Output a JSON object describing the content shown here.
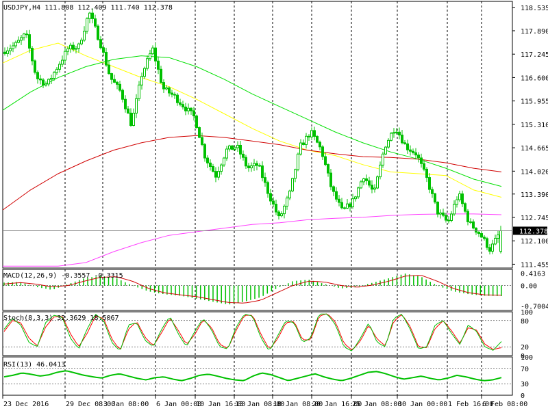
{
  "colors": {
    "candle": "#00c000",
    "ma_yellow": "#ffff00",
    "ma_green": "#00e000",
    "ma_red": "#d00000",
    "ma_magenta": "#ff40ff",
    "macd_hist": "#00c000",
    "macd_signal": "#d00000",
    "stoch_main": "#00c000",
    "stoch_signal": "#ff0000",
    "rsi": "#00c000",
    "grid": "#000000",
    "current_price_line": "#808080"
  },
  "labels": {
    "main": "USDJPY,H4  111.808 112.409 111.740 112.378",
    "macd": "MACD(12,26,9) -0.3557 -0.3315",
    "stoch": "Stoch(8,3,3) 32.3629 18.5067",
    "rsi": "RSI(13) 46.0413"
  },
  "chart_data": [
    {
      "type": "candlestick",
      "symbol": "USDJPY",
      "timeframe": "H4",
      "ohlc_current": {
        "open": 111.808,
        "high": 112.409,
        "low": 111.74,
        "close": 112.378
      },
      "current_price": "112.378",
      "ylim": [
        111.35,
        118.7
      ],
      "y_ticks": [
        "118.535",
        "117.890",
        "117.245",
        "116.600",
        "115.955",
        "115.310",
        "114.665",
        "114.020",
        "113.390",
        "112.745",
        "112.100",
        "111.455"
      ],
      "x_ticks": [
        "23 Dec 2016",
        "29 Dec 08:00",
        "3 Jan 08:00",
        "6 Jan 00:00",
        "10 Jan 16:00",
        "13 Jan 08:00",
        "18 Jan 08:00",
        "20 Jan 16:00",
        "25 Jan 08:00",
        "30 Jan 00:00",
        "1 Feb 16:00",
        "6 Feb 08:00"
      ],
      "grid": true,
      "close_path": [
        117.35,
        117.5,
        117.8,
        116.6,
        116.4,
        116.9,
        117.4,
        117.45,
        118.4,
        117.6,
        116.6,
        116.2,
        115.3,
        116.7,
        117.4,
        116.3,
        116.1,
        115.8,
        115.5,
        114.4,
        113.9,
        114.6,
        114.7,
        114.1,
        114.2,
        113.4,
        112.7,
        113.4,
        114.7,
        115.1,
        114.6,
        113.5,
        112.9,
        113.2,
        113.9,
        113.4,
        114.7,
        115.25,
        114.7,
        114.5,
        113.8,
        112.9,
        112.6,
        113.4,
        112.6,
        112.3,
        111.85,
        112.378
      ],
      "series": [
        {
          "name": "",
          "points": [
            117.0,
            117.35,
            117.55,
            117.2,
            116.9,
            116.6,
            116.35,
            116.0,
            115.6,
            115.2,
            114.85,
            114.6,
            114.45,
            114.2,
            114.0,
            113.95,
            113.9,
            113.5,
            113.3
          ]
        },
        {
          "name": "",
          "points": [
            115.7,
            116.2,
            116.6,
            116.9,
            117.1,
            117.2,
            117.15,
            116.9,
            116.55,
            116.15,
            115.8,
            115.45,
            115.1,
            114.8,
            114.55,
            114.35,
            114.1,
            113.8,
            113.6
          ]
        },
        {
          "name": "",
          "points": [
            112.95,
            113.5,
            113.95,
            114.3,
            114.6,
            114.8,
            114.95,
            115.0,
            114.95,
            114.85,
            114.75,
            114.6,
            114.5,
            114.42,
            114.4,
            114.35,
            114.25,
            114.1,
            114.0
          ]
        },
        {
          "name": "",
          "points": [
            111.4,
            111.4,
            111.4,
            111.5,
            111.8,
            112.05,
            112.25,
            112.35,
            112.45,
            112.55,
            112.6,
            112.68,
            112.72,
            112.75,
            112.8,
            112.83,
            112.84,
            112.84,
            112.82
          ]
        }
      ]
    },
    {
      "type": "bar",
      "indicator": "MACD(12,26,9)",
      "main": -0.3557,
      "signal": -0.3315,
      "ylim": [
        -0.85,
        0.55
      ],
      "y_ticks": [
        "0.4163",
        "0.00",
        "-0.7004"
      ],
      "hist_path": [
        0.1,
        0.12,
        -0.05,
        -0.15,
        0.05,
        0.25,
        0.33,
        0.25,
        0.0,
        -0.2,
        -0.3,
        -0.35,
        -0.45,
        -0.55,
        -0.65,
        -0.55,
        -0.4,
        -0.1,
        0.15,
        0.2,
        0.05,
        -0.1,
        -0.05,
        0.1,
        0.25,
        0.41,
        0.3,
        0.0,
        -0.2,
        -0.3,
        -0.35,
        -0.36
      ],
      "signal_path": [
        0.05,
        0.1,
        0.05,
        -0.05,
        0.0,
        0.15,
        0.28,
        0.3,
        0.15,
        -0.1,
        -0.25,
        -0.32,
        -0.38,
        -0.48,
        -0.58,
        -0.6,
        -0.5,
        -0.25,
        0.0,
        0.15,
        0.12,
        0.0,
        -0.06,
        0.02,
        0.15,
        0.32,
        0.35,
        0.15,
        -0.1,
        -0.25,
        -0.32,
        -0.33
      ]
    },
    {
      "type": "line",
      "indicator": "Stoch(8,3,3)",
      "main": 32.3629,
      "signal": 18.5067,
      "ylim": [
        0,
        100
      ],
      "y_ticks": [
        "100",
        "80",
        "20",
        "0"
      ],
      "main_path": [
        60,
        85,
        70,
        30,
        20,
        75,
        92,
        88,
        40,
        15,
        60,
        95,
        80,
        30,
        10,
        70,
        75,
        35,
        20,
        60,
        90,
        50,
        20,
        55,
        85,
        60,
        20,
        15,
        65,
        95,
        90,
        40,
        10,
        45,
        80,
        75,
        30,
        40,
        95,
        95,
        70,
        20,
        10,
        40,
        75,
        30,
        20,
        85,
        95,
        60,
        15,
        20,
        70,
        80,
        50,
        25,
        70,
        55,
        20,
        12,
        32
      ],
      "signal_path": [
        55,
        80,
        75,
        40,
        22,
        65,
        88,
        90,
        50,
        20,
        50,
        90,
        85,
        38,
        12,
        60,
        78,
        42,
        22,
        52,
        86,
        58,
        25,
        48,
        82,
        65,
        26,
        16,
        58,
        92,
        92,
        48,
        14,
        38,
        75,
        78,
        36,
        36,
        90,
        96,
        76,
        28,
        12,
        34,
        70,
        38,
        22,
        78,
        94,
        66,
        20,
        18,
        62,
        80,
        56,
        28,
        64,
        58,
        26,
        14,
        18
      ]
    },
    {
      "type": "line",
      "indicator": "RSI(13)",
      "value": 46.0413,
      "ylim": [
        0,
        100
      ],
      "y_ticks": [
        "100",
        "70",
        "30",
        "0"
      ],
      "path": [
        48,
        52,
        58,
        55,
        50,
        53,
        60,
        64,
        58,
        52,
        48,
        45,
        52,
        56,
        50,
        44,
        40,
        46,
        48,
        42,
        38,
        44,
        52,
        55,
        50,
        44,
        40,
        38,
        50,
        58,
        54,
        46,
        38,
        44,
        50,
        56,
        48,
        42,
        38,
        44,
        52,
        60,
        62,
        56,
        48,
        42,
        46,
        50,
        44,
        40,
        45,
        52,
        48,
        42,
        38,
        40,
        46
      ]
    }
  ]
}
